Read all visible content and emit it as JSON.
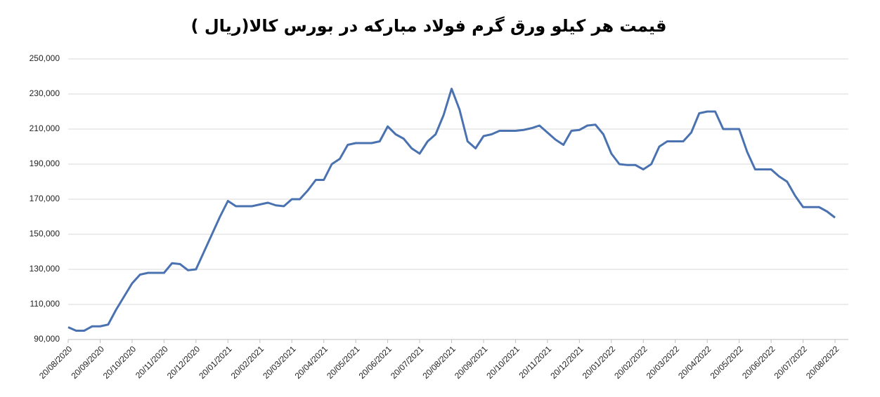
{
  "chart_data": {
    "type": "line",
    "title": "قیمت هر کیلو ورق گرم فولاد مبارکه در بورس کالا(ریال )",
    "categories": [
      "20/08/2020",
      null,
      null,
      null,
      "20/09/2020",
      null,
      null,
      null,
      "20/10/2020",
      null,
      null,
      null,
      "20/11/2020",
      null,
      null,
      null,
      "20/12/2020",
      null,
      null,
      null,
      "20/01/2021",
      null,
      null,
      null,
      "20/02/2021",
      null,
      null,
      null,
      "20/03/2021",
      null,
      null,
      null,
      "20/04/2021",
      null,
      null,
      null,
      "20/05/2021",
      null,
      null,
      null,
      "20/06/2021",
      null,
      null,
      null,
      "20/07/2021",
      null,
      null,
      null,
      "20/08/2021",
      null,
      null,
      null,
      "20/09/2021",
      null,
      null,
      null,
      "20/10/2021",
      null,
      null,
      null,
      "20/11/2021",
      null,
      null,
      null,
      "20/12/2021",
      null,
      null,
      null,
      "20/01/2022",
      null,
      null,
      null,
      "20/02/2022",
      null,
      null,
      null,
      "20/03/2022",
      null,
      null,
      null,
      "20/04/2022",
      null,
      null,
      null,
      "20/05/2022",
      null,
      null,
      null,
      "20/06/2022",
      null,
      null,
      null,
      "20/07/2022",
      null,
      null,
      null,
      "20/08/2022"
    ],
    "values": [
      97000,
      95000,
      95000,
      97500,
      97500,
      98500,
      107000,
      114500,
      122000,
      127000,
      128000,
      128000,
      128000,
      133500,
      133000,
      129500,
      130000,
      140000,
      150000,
      160000,
      169000,
      166000,
      166000,
      166000,
      167000,
      168000,
      166500,
      166000,
      170000,
      170000,
      175000,
      181000,
      181000,
      190000,
      193000,
      201000,
      202000,
      202000,
      202000,
      203000,
      211500,
      207000,
      204500,
      199000,
      196000,
      203000,
      207000,
      218000,
      233000,
      221000,
      203000,
      199000,
      206000,
      207000,
      209000,
      209000,
      209000,
      209500,
      210500,
      212000,
      208000,
      204000,
      201000,
      209000,
      209500,
      212000,
      212500,
      207000,
      196000,
      190000,
      189500,
      189500,
      187000,
      190000,
      200000,
      203000,
      203000,
      203000,
      208000,
      219000,
      220000,
      220000,
      210000,
      210000,
      210000,
      197000,
      187000,
      187000,
      187000,
      183000,
      180000,
      172000,
      165500,
      165500,
      165500,
      163000,
      159500
    ],
    "color": "#4a72b0",
    "ylim": [
      90000,
      250000
    ],
    "yticks": [
      {
        "value": 90000,
        "label": "90,000"
      },
      {
        "value": 110000,
        "label": "110,000"
      },
      {
        "value": 130000,
        "label": "130,000"
      },
      {
        "value": 150000,
        "label": "150,000"
      },
      {
        "value": 170000,
        "label": "170,000"
      },
      {
        "value": 190000,
        "label": "190,000"
      },
      {
        "value": 210000,
        "label": "210,000"
      },
      {
        "value": 230000,
        "label": "230,000"
      },
      {
        "value": 250000,
        "label": "250,000"
      }
    ],
    "grid": true
  }
}
